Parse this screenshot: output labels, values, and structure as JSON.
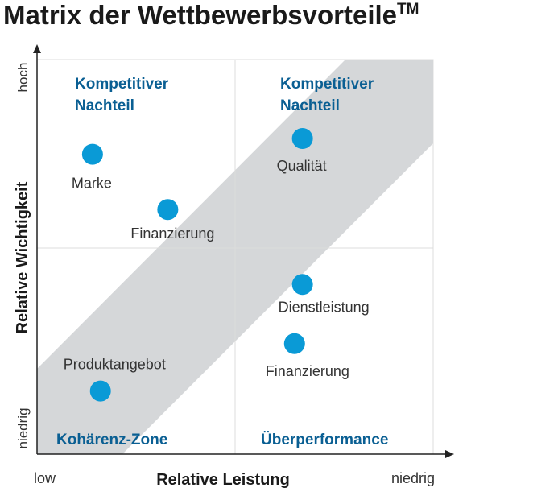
{
  "chart_data": {
    "type": "scatter",
    "title": "Matrix der Wettbewerbsvorteile",
    "title_mark": "TM",
    "xlabel": "Relative Leistung",
    "ylabel": "Relative Wichtigkeit",
    "x_ticks": {
      "low": "low",
      "high": "niedrig"
    },
    "y_ticks": {
      "low": "niedrig",
      "high": "hoch"
    },
    "xlim": [
      0,
      10
    ],
    "ylim": [
      0,
      10
    ],
    "grid": "quadrant dividers at midpoints",
    "quadrants": [
      {
        "position": "top-left",
        "label": [
          "Kompetitiver",
          "Nachteil"
        ]
      },
      {
        "position": "top-right",
        "label": [
          "Kompetitiver",
          "Nachteil"
        ]
      },
      {
        "position": "bottom-left",
        "label": [
          "Kohärenz-Zone"
        ]
      },
      {
        "position": "bottom-right",
        "label": [
          "Überperformance"
        ]
      }
    ],
    "band": {
      "description": "diagonal coherence band",
      "color": "#d5d7d9"
    },
    "points": [
      {
        "label": "Marke",
        "x": 1.4,
        "y": 7.6
      },
      {
        "label": "Finanzierung",
        "x": 3.3,
        "y": 6.2
      },
      {
        "label": "Qualität",
        "x": 6.7,
        "y": 8.0
      },
      {
        "label": "Dienstleistung",
        "x": 6.7,
        "y": 4.3
      },
      {
        "label": "Finanzierung",
        "x": 6.5,
        "y": 2.8
      },
      {
        "label": "Produktangebot",
        "x": 1.6,
        "y": 1.6
      }
    ],
    "colors": {
      "point": "#0a9ad6",
      "quadrant_label": "#0a5f93",
      "band": "#d5d7d9",
      "grid": "#dcdcdc",
      "axis": "#222222"
    }
  }
}
